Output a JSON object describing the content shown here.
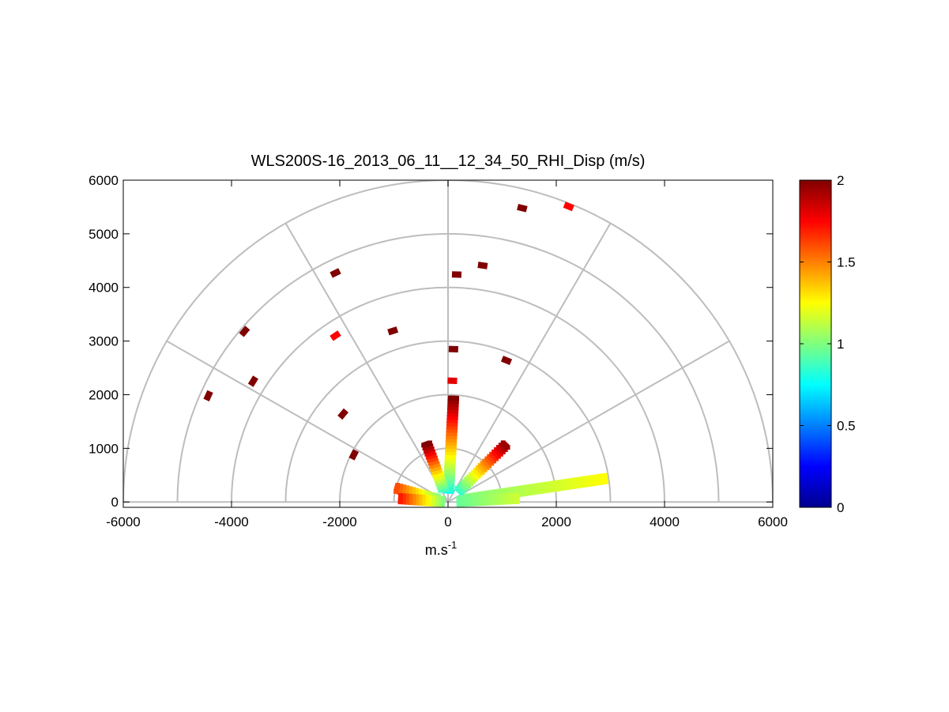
{
  "chart_data": {
    "type": "polar-rhi-scatter",
    "title": "WLS200S-16_2013_06_11__12_34_50_RHI_Disp (m/s)",
    "xlabel": "m.s",
    "xlabel_superscript": "-1",
    "ylabel": "",
    "xlim": [
      -6000,
      6000
    ],
    "ylim": [
      -100,
      6000
    ],
    "x_ticks": [
      -6000,
      -4000,
      -2000,
      0,
      2000,
      4000,
      6000
    ],
    "y_ticks": [
      0,
      1000,
      2000,
      3000,
      4000,
      5000,
      6000
    ],
    "x_tick_labels": [
      "-6000",
      "-4000",
      "-2000",
      "0",
      "2000",
      "4000",
      "6000"
    ],
    "y_tick_labels": [
      "0",
      "1000",
      "2000",
      "3000",
      "4000",
      "5000",
      "6000"
    ],
    "polar_grid": {
      "range_rings": [
        1000,
        2000,
        3000,
        4000,
        5000,
        6000
      ],
      "spokes_deg": [
        0,
        30,
        60,
        90,
        120,
        150,
        180
      ]
    },
    "colorbar": {
      "colormap": "jet",
      "min": 0,
      "max": 2,
      "ticks": [
        0,
        0.5,
        1,
        1.5,
        2
      ],
      "tick_labels": [
        "0",
        "0.5",
        "1",
        "1.5",
        "2"
      ]
    },
    "isolated_points": [
      {
        "x": 1370,
        "y": 5480,
        "v": 2.0
      },
      {
        "x": 2230,
        "y": 5510,
        "v": 1.75
      },
      {
        "x": 640,
        "y": 4410,
        "v": 2.0
      },
      {
        "x": 160,
        "y": 4240,
        "v": 2.0
      },
      {
        "x": -2080,
        "y": 4270,
        "v": 2.0
      },
      {
        "x": -3760,
        "y": 3180,
        "v": 2.0
      },
      {
        "x": -2080,
        "y": 3100,
        "v": 1.75
      },
      {
        "x": -1020,
        "y": 3190,
        "v": 2.0
      },
      {
        "x": 100,
        "y": 2850,
        "v": 2.0
      },
      {
        "x": 1080,
        "y": 2640,
        "v": 2.0
      },
      {
        "x": -3600,
        "y": 2250,
        "v": 2.0
      },
      {
        "x": -4430,
        "y": 1980,
        "v": 2.0
      },
      {
        "x": 80,
        "y": 2260,
        "v": 1.8
      },
      {
        "x": -1940,
        "y": 1640,
        "v": 2.0
      },
      {
        "x": -1740,
        "y": 880,
        "v": 2.0
      }
    ],
    "beams": [
      {
        "azimuth_deg": 8.5,
        "min_range": 300,
        "max_range": 2960,
        "v_start": 1.0,
        "v_end": 1.25
      },
      {
        "azimuth_deg": 3,
        "min_range": 200,
        "max_range": 1300,
        "v_start": 0.95,
        "v_end": 1.15
      },
      {
        "azimuth_deg": 45,
        "min_range": 300,
        "max_range": 1500,
        "v_start": 0.85,
        "v_end": 1.95
      },
      {
        "azimuth_deg": 87,
        "min_range": 200,
        "max_range": 1950,
        "v_start": 0.8,
        "v_end": 2.0
      },
      {
        "azimuth_deg": 110,
        "min_range": 250,
        "max_range": 1200,
        "v_start": 0.9,
        "v_end": 2.0
      },
      {
        "azimuth_deg": 165,
        "min_range": 200,
        "max_range": 1000,
        "v_start": 1.0,
        "v_end": 1.6
      },
      {
        "azimuth_deg": 176,
        "min_range": 100,
        "max_range": 900,
        "v_start": 1.0,
        "v_end": 1.7
      }
    ]
  }
}
